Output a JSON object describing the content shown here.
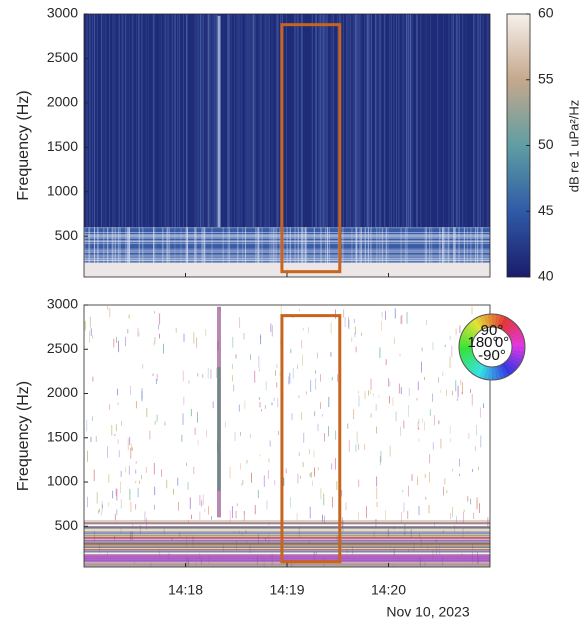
{
  "chart_data": [
    {
      "type": "spectrogram",
      "ylabel": "Frequency (Hz)",
      "ylim": [
        40,
        3000
      ],
      "yticks": [
        500,
        1000,
        1500,
        2000,
        2500,
        3000
      ],
      "xlim": [
        17,
        21
      ],
      "colorbar": {
        "label": "dB re 1 uPa²/Hz",
        "lim": [
          40,
          60
        ],
        "ticks": [
          40,
          45,
          50,
          55,
          60
        ],
        "colors": [
          "#1b1c6b",
          "#2f5aa6",
          "#5f9ea3",
          "#c5a88c",
          "#f6f1ec"
        ]
      },
      "highlight": {
        "x": [
          18.95,
          19.52
        ],
        "y": [
          100,
          2880
        ],
        "color": "#c8641e"
      }
    },
    {
      "type": "phase",
      "ylabel": "Frequency (Hz)",
      "ylim": [
        40,
        3000
      ],
      "yticks": [
        500,
        1000,
        1500,
        2000,
        2500,
        3000
      ],
      "xlim": [
        17,
        21
      ],
      "xticks": [
        {
          "value": 18,
          "label": "14:18"
        },
        {
          "value": 19,
          "label": "14:19"
        },
        {
          "value": 20,
          "label": "14:20"
        }
      ],
      "xlabel": "Nov 10, 2023",
      "phase_legend": {
        "labels": [
          "90°",
          "180°",
          "0°",
          "-90°"
        ]
      },
      "highlight": {
        "x": [
          18.95,
          19.52
        ],
        "y": [
          100,
          2880
        ],
        "color": "#c8641e"
      }
    }
  ]
}
